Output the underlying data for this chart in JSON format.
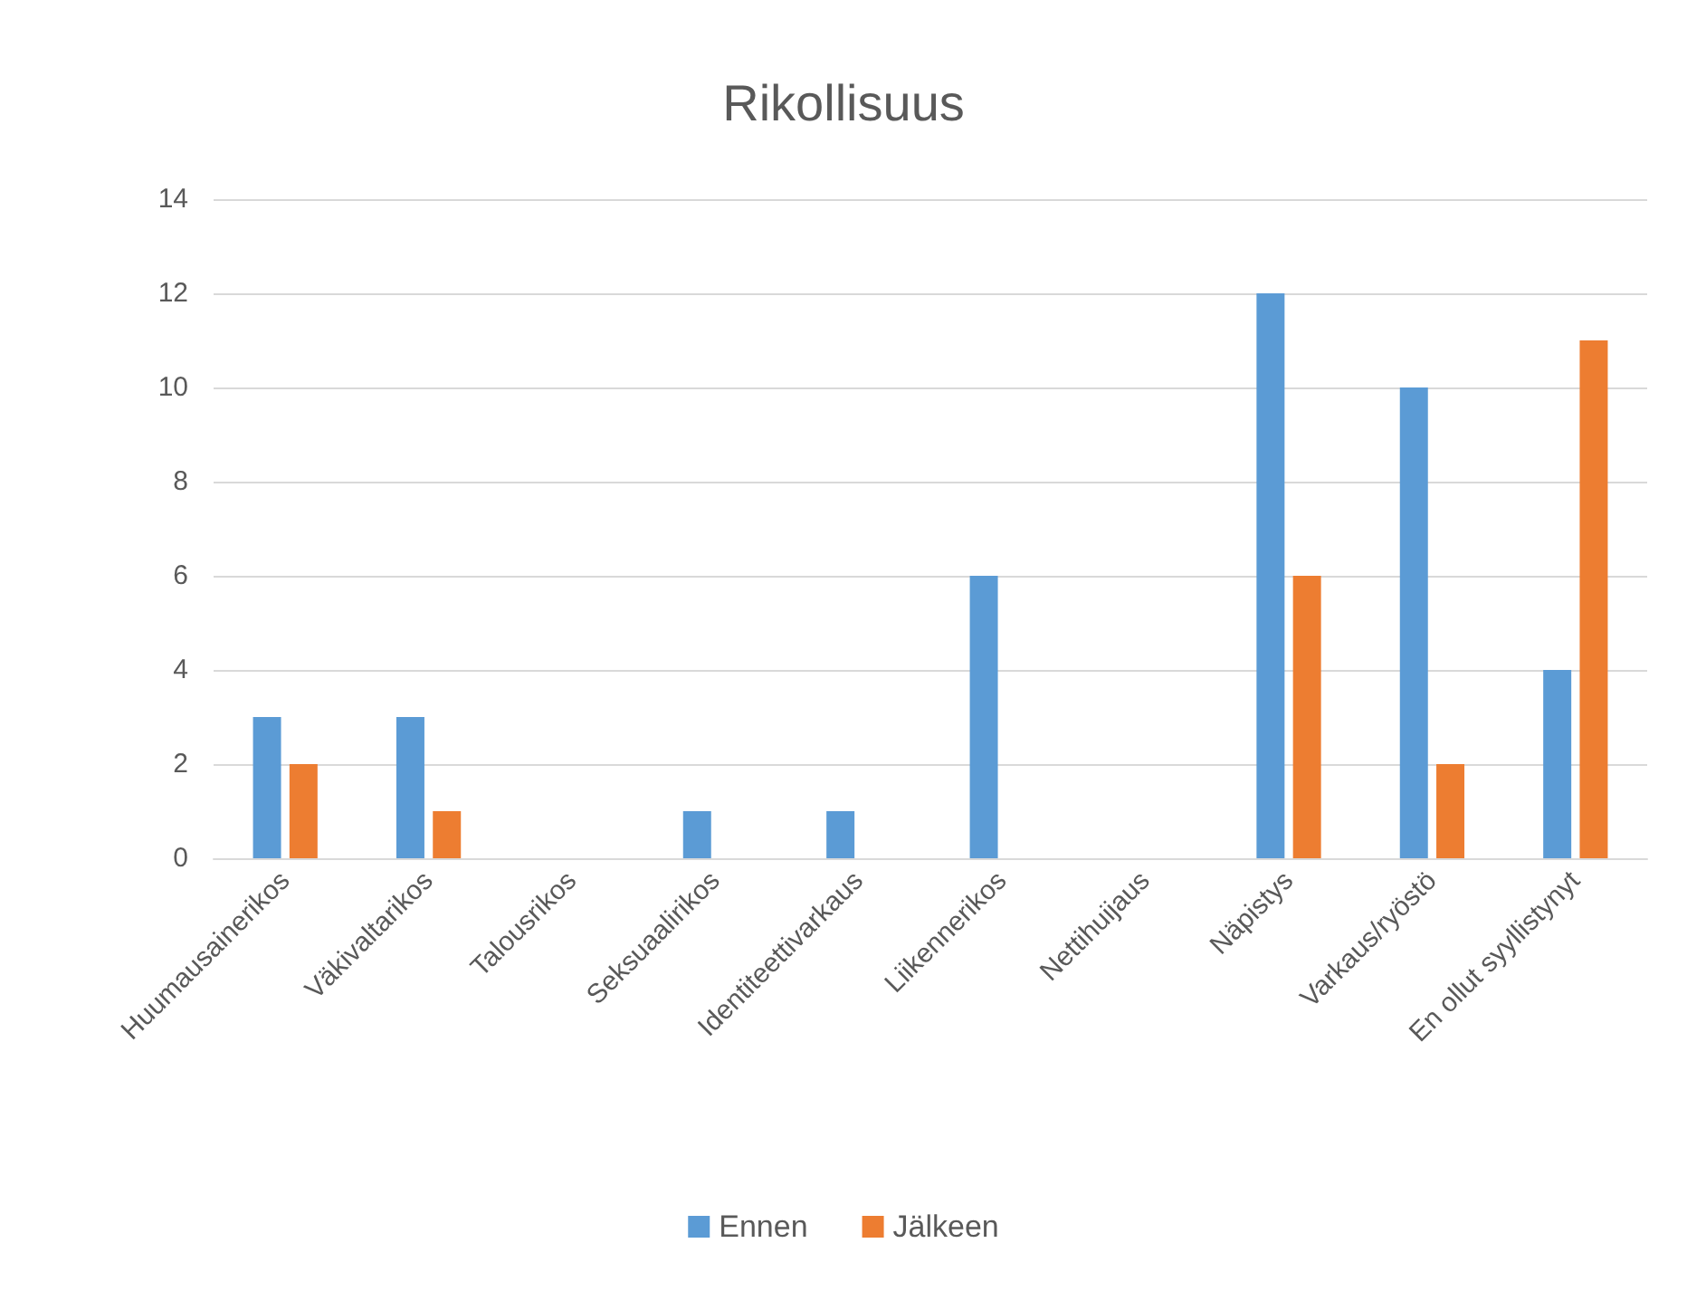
{
  "chart_data": {
    "type": "bar",
    "title": "Rikollisuus",
    "categories": [
      "Huumausainerikos",
      "Väkivaltarikos",
      "Talousrikos",
      "Seksuaalirikos",
      "Identiteettivarkaus",
      "Liikennerikos",
      "Nettihuijaus",
      "Näpistys",
      "Varkaus/ryöstö",
      "En ollut syyllistynyt"
    ],
    "series": [
      {
        "name": "Ennen",
        "color": "#5b9bd5",
        "values": [
          3,
          3,
          0,
          1,
          1,
          6,
          0,
          12,
          10,
          4
        ]
      },
      {
        "name": "Jälkeen",
        "color": "#ed7d31",
        "values": [
          2,
          1,
          0,
          0,
          0,
          0,
          0,
          6,
          2,
          11
        ]
      }
    ],
    "ylim": [
      0,
      14
    ],
    "yticks": [
      0,
      2,
      4,
      6,
      8,
      10,
      12,
      14
    ],
    "grid": "y",
    "legend": "bottom"
  }
}
